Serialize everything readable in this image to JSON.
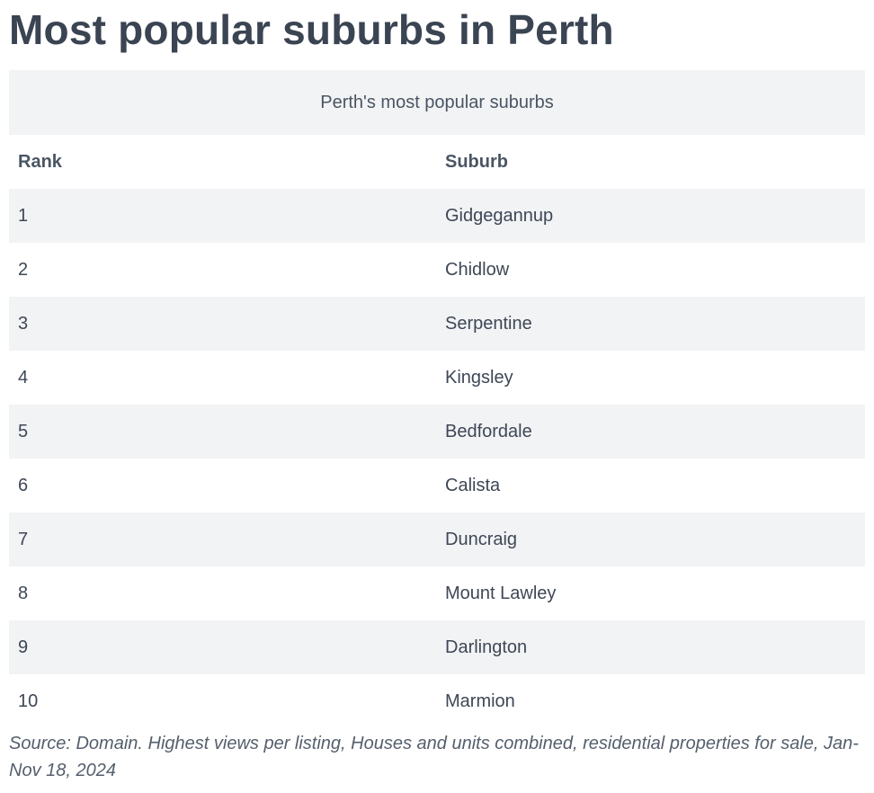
{
  "page": {
    "title": "Most popular suburbs in Perth"
  },
  "table": {
    "caption": "Perth's most popular suburbs",
    "headers": [
      "Rank",
      "Suburb"
    ],
    "rows": [
      [
        "1",
        "Gidgegannup"
      ],
      [
        "2",
        "Chidlow"
      ],
      [
        "3",
        "Serpentine"
      ],
      [
        "4",
        "Kingsley"
      ],
      [
        "5",
        "Bedfordale"
      ],
      [
        "6",
        "Calista"
      ],
      [
        "7",
        "Duncraig"
      ],
      [
        "8",
        "Mount Lawley"
      ],
      [
        "9",
        "Darlington"
      ],
      [
        "10",
        "Marmion"
      ]
    ]
  },
  "footer": {
    "source": "Source: Domain. Highest views per listing, Houses and units combined, residential properties for sale, Jan-Nov 18, 2024"
  },
  "colors": {
    "text": "#3a4452",
    "stripe": "#f2f3f5",
    "background": "#ffffff"
  }
}
